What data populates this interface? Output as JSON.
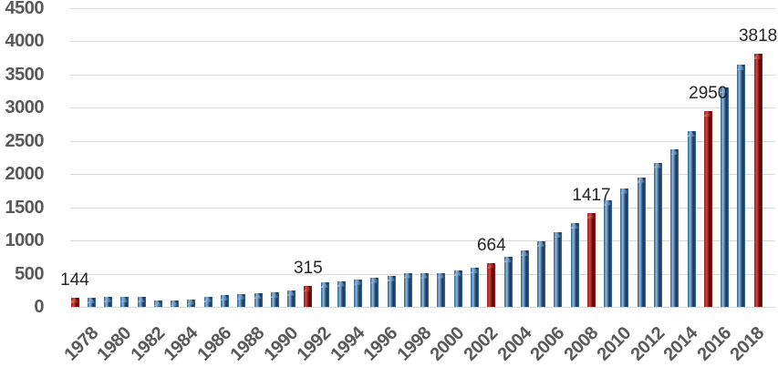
{
  "chart_data": {
    "type": "bar",
    "title": "",
    "xlabel": "",
    "ylabel": "",
    "categories": [
      "1978",
      "1979",
      "1980",
      "1981",
      "1982",
      "1983",
      "1984",
      "1985",
      "1986",
      "1987",
      "1988",
      "1989",
      "1990",
      "1991",
      "1992",
      "1993",
      "1994",
      "1995",
      "1996",
      "1997",
      "1998",
      "1999",
      "2000",
      "2001",
      "2002",
      "2003",
      "2004",
      "2005",
      "2006",
      "2007",
      "2008",
      "2009",
      "2010",
      "2011",
      "2012",
      "2013",
      "2014",
      "2015",
      "2016",
      "2017",
      "2018",
      "2019"
    ],
    "values": [
      144,
      135,
      150,
      150,
      145,
      90,
      90,
      115,
      155,
      180,
      195,
      200,
      215,
      250,
      315,
      370,
      390,
      415,
      440,
      470,
      515,
      510,
      515,
      550,
      590,
      664,
      750,
      845,
      990,
      1120,
      1260,
      1417,
      1610,
      1790,
      1955,
      2175,
      2370,
      2645,
      2950,
      3305,
      3650,
      3818
    ],
    "highlighted_years": [
      "1978",
      "1992",
      "2003",
      "2009",
      "2016",
      "2019"
    ],
    "data_labels": {
      "1978": "144",
      "1992": "315",
      "2003": "664",
      "2009": "1417",
      "2016": "2950",
      "2019": "3818"
    },
    "ylim": [
      0,
      4500
    ],
    "yticks": [
      0,
      500,
      1000,
      1500,
      2000,
      2500,
      3000,
      3500,
      4000,
      4500
    ],
    "xtick_years": [
      "1978",
      "1980",
      "1982",
      "1984",
      "1986",
      "1988",
      "1990",
      "1992",
      "1994",
      "1996",
      "1998",
      "2000",
      "2002",
      "2004",
      "2006",
      "2008",
      "2010",
      "2012",
      "2014",
      "2016",
      "2018"
    ],
    "grid": true,
    "legend": "none",
    "colors": {
      "bar_blue": "#35618E",
      "bar_red": "#9A1B1E",
      "gridline": "#D8D8D8",
      "axis_label": "#595959",
      "data_label": "#262626",
      "background": "#FFFFFF"
    }
  }
}
